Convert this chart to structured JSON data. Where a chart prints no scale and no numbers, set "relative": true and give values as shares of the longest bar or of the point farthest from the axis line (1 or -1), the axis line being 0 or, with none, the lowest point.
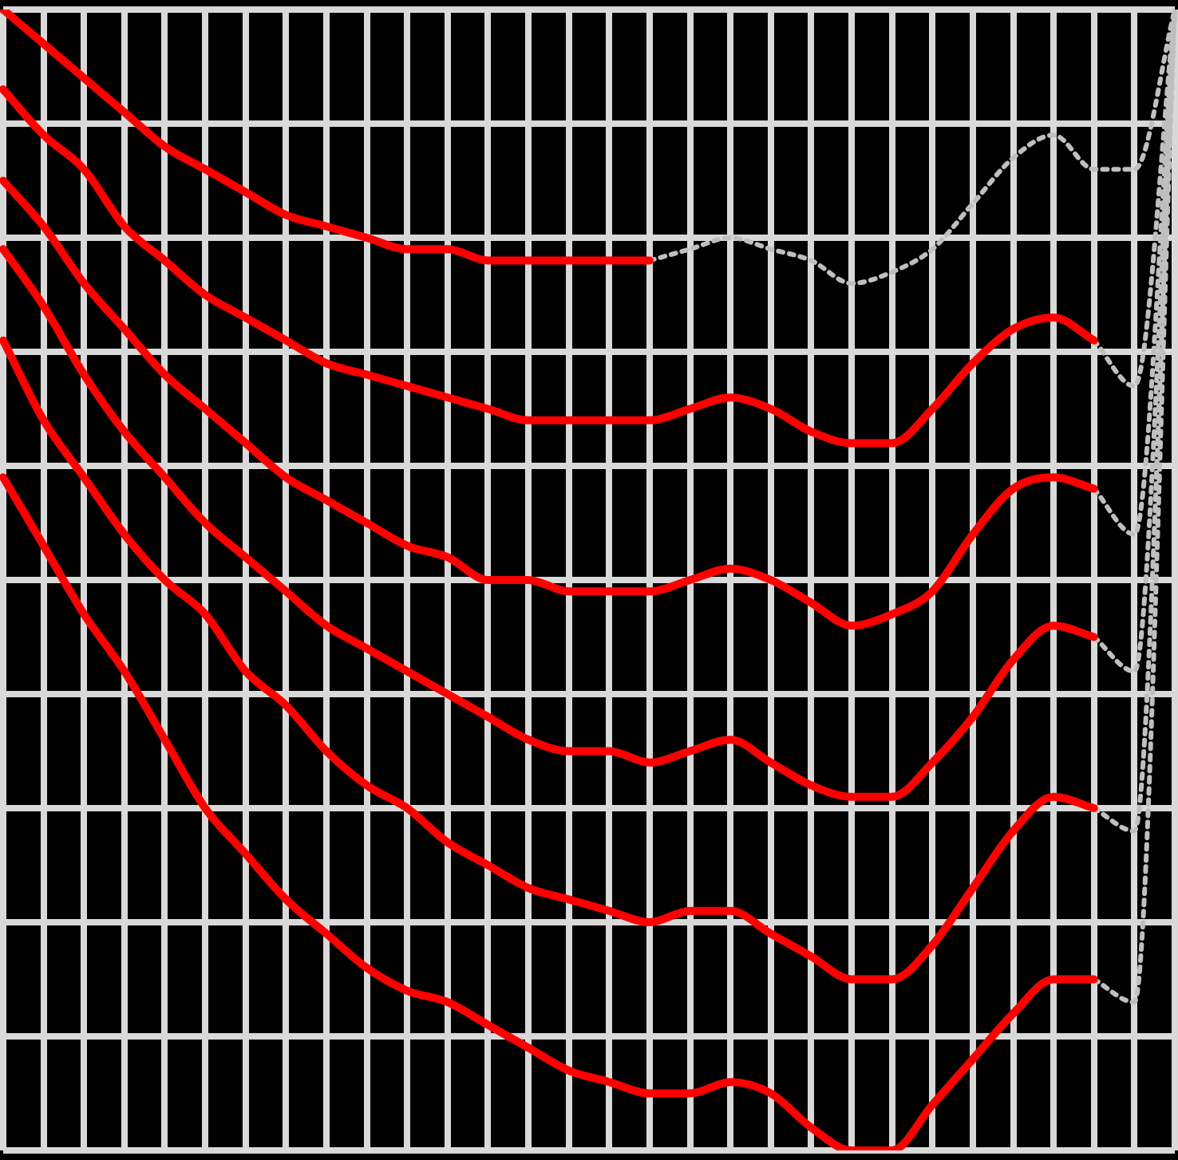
{
  "chart_data": {
    "type": "line",
    "relative": true,
    "grid": true,
    "legend": false,
    "categories": [
      null,
      null,
      null,
      null,
      null,
      null,
      null,
      null,
      null,
      null,
      null,
      null,
      null,
      null,
      null,
      null,
      null,
      null,
      null,
      null,
      null,
      null,
      null,
      null,
      null,
      null,
      null,
      null,
      null,
      null
    ],
    "series": [
      {
        "color": "#ff0000",
        "values": [
          1.0,
          0.97,
          0.94,
          0.91,
          0.88,
          0.86,
          0.84,
          0.82,
          0.81,
          0.8,
          0.79,
          0.79,
          0.78,
          0.78,
          0.78,
          0.78,
          0.78,
          null,
          null,
          null,
          null,
          null,
          null,
          null,
          null,
          null,
          null,
          null,
          null,
          null
        ]
      },
      {
        "color": "#bfbfbf",
        "line_style": "dotted",
        "values": [
          null,
          null,
          null,
          null,
          null,
          null,
          null,
          null,
          null,
          null,
          null,
          null,
          null,
          null,
          null,
          null,
          0.78,
          0.79,
          0.8,
          0.79,
          0.78,
          0.76,
          0.77,
          0.79,
          0.83,
          0.87,
          0.89,
          0.86,
          0.86,
          1.0
        ]
      },
      {
        "color": "#ff0000",
        "values": [
          0.93,
          0.89,
          0.86,
          0.81,
          0.78,
          0.75,
          0.73,
          0.71,
          0.69,
          0.68,
          0.67,
          0.66,
          0.65,
          0.64,
          0.64,
          0.64,
          0.64,
          0.65,
          0.66,
          0.65,
          0.63,
          0.62,
          0.62,
          0.65,
          0.69,
          0.72,
          0.73,
          0.71,
          null,
          null
        ]
      },
      {
        "color": "#bfbfbf",
        "line_style": "dotted",
        "values": [
          null,
          null,
          null,
          null,
          null,
          null,
          null,
          null,
          null,
          null,
          null,
          null,
          null,
          null,
          null,
          null,
          null,
          null,
          null,
          null,
          null,
          null,
          null,
          null,
          null,
          null,
          null,
          0.71,
          0.67,
          1.0
        ]
      },
      {
        "color": "#ff0000",
        "values": [
          0.85,
          0.81,
          0.76,
          0.72,
          0.68,
          0.65,
          0.62,
          0.59,
          0.57,
          0.55,
          0.53,
          0.52,
          0.5,
          0.5,
          0.49,
          0.49,
          0.49,
          0.5,
          0.51,
          0.5,
          0.48,
          0.46,
          0.47,
          0.49,
          0.54,
          0.58,
          0.59,
          0.58,
          null,
          null
        ]
      },
      {
        "color": "#bfbfbf",
        "line_style": "dotted",
        "values": [
          null,
          null,
          null,
          null,
          null,
          null,
          null,
          null,
          null,
          null,
          null,
          null,
          null,
          null,
          null,
          null,
          null,
          null,
          null,
          null,
          null,
          null,
          null,
          null,
          null,
          null,
          null,
          0.58,
          0.54,
          1.0
        ]
      },
      {
        "color": "#ff0000",
        "values": [
          0.79,
          0.74,
          0.68,
          0.63,
          0.59,
          0.55,
          0.52,
          0.49,
          0.46,
          0.44,
          0.42,
          0.4,
          0.38,
          0.36,
          0.35,
          0.35,
          0.34,
          0.35,
          0.36,
          0.34,
          0.32,
          0.31,
          0.31,
          0.34,
          0.38,
          0.43,
          0.46,
          0.45,
          null,
          null
        ]
      },
      {
        "color": "#bfbfbf",
        "line_style": "dotted",
        "values": [
          null,
          null,
          null,
          null,
          null,
          null,
          null,
          null,
          null,
          null,
          null,
          null,
          null,
          null,
          null,
          null,
          null,
          null,
          null,
          null,
          null,
          null,
          null,
          null,
          null,
          null,
          null,
          0.45,
          0.42,
          1.0
        ]
      },
      {
        "color": "#ff0000",
        "values": [
          0.71,
          0.64,
          0.59,
          0.54,
          0.5,
          0.47,
          0.42,
          0.39,
          0.35,
          0.32,
          0.3,
          0.27,
          0.25,
          0.23,
          0.22,
          0.21,
          0.2,
          0.21,
          0.21,
          0.19,
          0.17,
          0.15,
          0.15,
          0.18,
          0.23,
          0.28,
          0.31,
          0.3,
          null,
          null
        ]
      },
      {
        "color": "#bfbfbf",
        "line_style": "dotted",
        "values": [
          null,
          null,
          null,
          null,
          null,
          null,
          null,
          null,
          null,
          null,
          null,
          null,
          null,
          null,
          null,
          null,
          null,
          null,
          null,
          null,
          null,
          null,
          null,
          null,
          null,
          null,
          null,
          0.3,
          0.28,
          1.0
        ]
      },
      {
        "color": "#ff0000",
        "values": [
          0.59,
          0.53,
          0.47,
          0.42,
          0.36,
          0.3,
          0.26,
          0.22,
          0.19,
          0.16,
          0.14,
          0.13,
          0.11,
          0.09,
          0.07,
          0.06,
          0.05,
          0.05,
          0.06,
          0.05,
          0.02,
          0.0,
          0.0,
          0.04,
          0.08,
          0.12,
          0.15,
          0.15,
          null,
          null
        ]
      },
      {
        "color": "#bfbfbf",
        "line_style": "dotted",
        "values": [
          null,
          null,
          null,
          null,
          null,
          null,
          null,
          null,
          null,
          null,
          null,
          null,
          null,
          null,
          null,
          null,
          null,
          null,
          null,
          null,
          null,
          null,
          null,
          null,
          null,
          null,
          null,
          0.15,
          0.13,
          1.0
        ]
      }
    ]
  }
}
